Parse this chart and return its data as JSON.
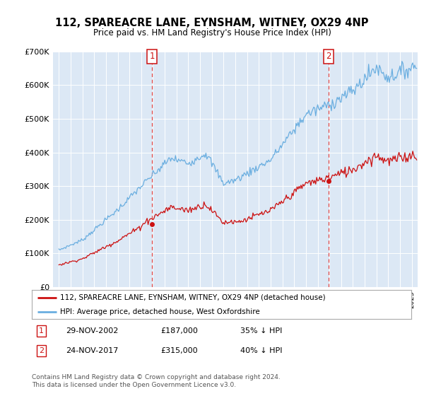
{
  "title": "112, SPAREACRE LANE, EYNSHAM, WITNEY, OX29 4NP",
  "subtitle": "Price paid vs. HM Land Registry's House Price Index (HPI)",
  "background_color": "#ffffff",
  "plot_bg_color": "#dce8f5",
  "sale1_date_num": 2002.92,
  "sale1_price": 187000,
  "sale2_date_num": 2017.92,
  "sale2_price": 315000,
  "hpi_line_color": "#6aaee0",
  "price_line_color": "#cc1111",
  "marker_box_color": "#cc1111",
  "vline_color": "#dd4444",
  "legend_label_price": "112, SPAREACRE LANE, EYNSHAM, WITNEY, OX29 4NP (detached house)",
  "legend_label_hpi": "HPI: Average price, detached house, West Oxfordshire",
  "footer": "Contains HM Land Registry data © Crown copyright and database right 2024.\nThis data is licensed under the Open Government Licence v3.0.",
  "xmin": 1994.5,
  "xmax": 2025.5,
  "ymin": 0,
  "ymax": 700000
}
